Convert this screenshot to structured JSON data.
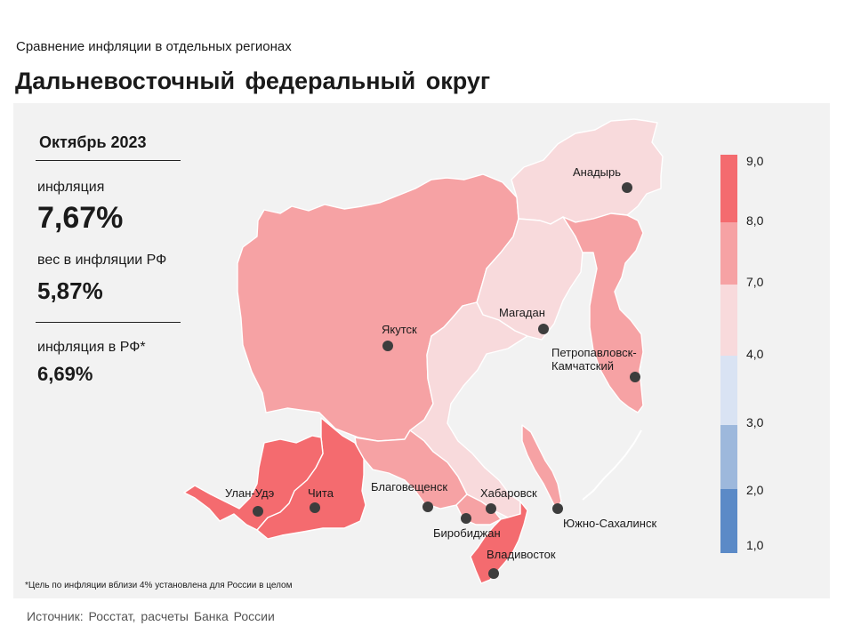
{
  "header": {
    "subtitle": "Сравнение инфляции в отдельных регионах",
    "title": "Дальневосточный федеральный округ"
  },
  "info": {
    "period": "Октябрь 2023",
    "inflation_label": "инфляция",
    "inflation_value": "7,67%",
    "weight_label": "вес в инфляции РФ",
    "weight_value": "5,87%",
    "rf_label": "инфляция в РФ*",
    "rf_value": "6,69%"
  },
  "footnote": "*Цель по инфляции вблизи 4% установлена для России в целом",
  "source": "Источник: Росстат, расчеты Банка России",
  "colors": {
    "panel": "#f2f2f2",
    "class_8_9": "#f46b6f",
    "class_7_8": "#f6a2a4",
    "class_4_7": "#f8dadc",
    "class_3_4": "#d9e3f3",
    "class_2_3": "#9db8dc",
    "class_1_2": "#5b8ac7",
    "city_dot": "#3d3d3d"
  },
  "legend": {
    "ticks": [
      "9,0",
      "8,0",
      "7,0",
      "4,0",
      "3,0",
      "2,0",
      "1,0"
    ],
    "classes": [
      {
        "from": 8,
        "to": 9,
        "color": "#f46b6f"
      },
      {
        "from": 7,
        "to": 8,
        "color": "#f6a2a4"
      },
      {
        "from": 4,
        "to": 7,
        "color": "#f8dadc"
      },
      {
        "from": 3,
        "to": 4,
        "color": "#d9e3f3"
      },
      {
        "from": 2,
        "to": 3,
        "color": "#9db8dc"
      },
      {
        "from": 1,
        "to": 2,
        "color": "#5b8ac7"
      }
    ]
  },
  "regions": [
    {
      "name": "Республика Саха (Якутия)",
      "class": "7-8"
    },
    {
      "name": "Чукотский автономный округ",
      "class": "4-7"
    },
    {
      "name": "Магаданская область",
      "class": "4-7"
    },
    {
      "name": "Камчатский край",
      "class": "7-8"
    },
    {
      "name": "Хабаровский край",
      "class": "4-7"
    },
    {
      "name": "Амурская область",
      "class": "7-8"
    },
    {
      "name": "Еврейская автономная область",
      "class": "7-8"
    },
    {
      "name": "Приморский край",
      "class": "8-9"
    },
    {
      "name": "Сахалинская область",
      "class": "7-8"
    },
    {
      "name": "Забайкальский край",
      "class": "8-9"
    },
    {
      "name": "Республика Бурятия",
      "class": "8-9"
    }
  ],
  "cities": {
    "anadyr": "Анадырь",
    "yakutsk": "Якутск",
    "magadan": "Магадан",
    "petropavlovsk_1": "Петропавловск-",
    "petropavlovsk_2": "Камчатский",
    "blagoveshchensk": "Благовещенск",
    "khabarovsk": "Хабаровск",
    "ulan_ude": "Улан-Удэ",
    "chita": "Чита",
    "birobidzhan": "Биробиджан",
    "vladivostok": "Владивосток",
    "yuzhno_sakhalinsk": "Южно-Сахалинск"
  }
}
